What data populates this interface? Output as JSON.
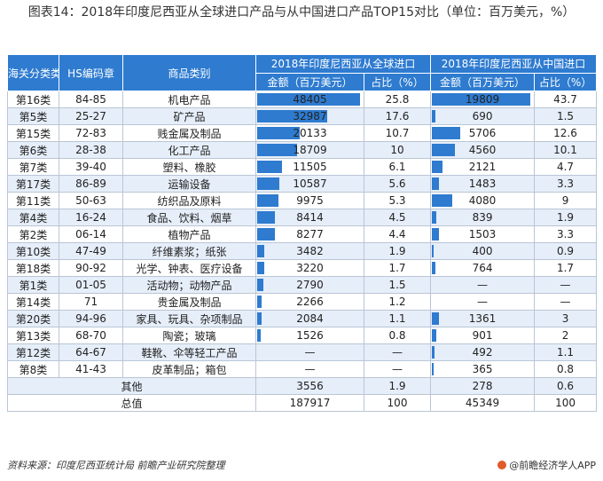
{
  "title": "图表14：2018年印度尼西亚从全球进口产品与从中国进口产品TOP15对比（单位：百万美元，%）",
  "headers": {
    "category": "海关分类类",
    "hs_code": "HS编码章",
    "product": "商品类别",
    "global_group": "2018年印度尼西亚从全球进口",
    "china_group": "2018年印度尼西亚从中国进口",
    "amount": "金额（百万美元）",
    "share": "占比（%）"
  },
  "chart_data": {
    "type": "table",
    "max_global": 48405,
    "max_china": 19809,
    "rows": [
      {
        "cat": "第16类",
        "hs": "84-85",
        "name": "机电产品",
        "g_amt": "48405",
        "g_val": 48405,
        "g_pct": "25.8",
        "c_amt": "19809",
        "c_val": 19809,
        "c_pct": "43.7"
      },
      {
        "cat": "第5类",
        "hs": "25-27",
        "name": "矿产品",
        "g_amt": "32987",
        "g_val": 32987,
        "g_pct": "17.6",
        "c_amt": "690",
        "c_val": 690,
        "c_pct": "1.5"
      },
      {
        "cat": "第15类",
        "hs": "72-83",
        "name": "贱金属及制品",
        "g_amt": "20133",
        "g_val": 20133,
        "g_pct": "10.7",
        "c_amt": "5706",
        "c_val": 5706,
        "c_pct": "12.6"
      },
      {
        "cat": "第6类",
        "hs": "28-38",
        "name": "化工产品",
        "g_amt": "18709",
        "g_val": 18709,
        "g_pct": "10",
        "c_amt": "4560",
        "c_val": 4560,
        "c_pct": "10.1"
      },
      {
        "cat": "第7类",
        "hs": "39-40",
        "name": "塑料、橡胶",
        "g_amt": "11505",
        "g_val": 11505,
        "g_pct": "6.1",
        "c_amt": "2121",
        "c_val": 2121,
        "c_pct": "4.7"
      },
      {
        "cat": "第17类",
        "hs": "86-89",
        "name": "运输设备",
        "g_amt": "10587",
        "g_val": 10587,
        "g_pct": "5.6",
        "c_amt": "1483",
        "c_val": 1483,
        "c_pct": "3.3"
      },
      {
        "cat": "第11类",
        "hs": "50-63",
        "name": "纺织品及原料",
        "g_amt": "9975",
        "g_val": 9975,
        "g_pct": "5.3",
        "c_amt": "4080",
        "c_val": 4080,
        "c_pct": "9"
      },
      {
        "cat": "第4类",
        "hs": "16-24",
        "name": "食品、饮料、烟草",
        "g_amt": "8414",
        "g_val": 8414,
        "g_pct": "4.5",
        "c_amt": "839",
        "c_val": 839,
        "c_pct": "1.9"
      },
      {
        "cat": "第2类",
        "hs": "06-14",
        "name": "植物产品",
        "g_amt": "8277",
        "g_val": 8277,
        "g_pct": "4.4",
        "c_amt": "1503",
        "c_val": 1503,
        "c_pct": "3.3"
      },
      {
        "cat": "第10类",
        "hs": "47-49",
        "name": "纤维素浆；纸张",
        "g_amt": "3482",
        "g_val": 3482,
        "g_pct": "1.9",
        "c_amt": "400",
        "c_val": 400,
        "c_pct": "0.9"
      },
      {
        "cat": "第18类",
        "hs": "90-92",
        "name": "光学、钟表、医疗设备",
        "g_amt": "3220",
        "g_val": 3220,
        "g_pct": "1.7",
        "c_amt": "764",
        "c_val": 764,
        "c_pct": "1.7"
      },
      {
        "cat": "第1类",
        "hs": "01-05",
        "name": "活动物；动物产品",
        "g_amt": "2790",
        "g_val": 2790,
        "g_pct": "1.5",
        "c_amt": "—",
        "c_val": 0,
        "c_pct": "—"
      },
      {
        "cat": "第14类",
        "hs": "71",
        "name": "贵金属及制品",
        "g_amt": "2266",
        "g_val": 2266,
        "g_pct": "1.2",
        "c_amt": "—",
        "c_val": 0,
        "c_pct": "—"
      },
      {
        "cat": "第20类",
        "hs": "94-96",
        "name": "家具、玩具、杂项制品",
        "g_amt": "2084",
        "g_val": 2084,
        "g_pct": "1.1",
        "c_amt": "1361",
        "c_val": 1361,
        "c_pct": "3"
      },
      {
        "cat": "第13类",
        "hs": "68-70",
        "name": "陶瓷；玻璃",
        "g_amt": "1526",
        "g_val": 1526,
        "g_pct": "0.8",
        "c_amt": "901",
        "c_val": 901,
        "c_pct": "2"
      },
      {
        "cat": "第12类",
        "hs": "64-67",
        "name": "鞋靴、伞等轻工产品",
        "g_amt": "—",
        "g_val": 0,
        "g_pct": "—",
        "c_amt": "492",
        "c_val": 492,
        "c_pct": "1.1"
      },
      {
        "cat": "第8类",
        "hs": "41-43",
        "name": "皮革制品；箱包",
        "g_amt": "—",
        "g_val": 0,
        "g_pct": "—",
        "c_amt": "365",
        "c_val": 365,
        "c_pct": "0.8"
      }
    ],
    "other": {
      "label": "其他",
      "g_amt": "3556",
      "g_pct": "1.9",
      "c_amt": "278",
      "c_pct": "0.6"
    },
    "total": {
      "label": "总值",
      "g_amt": "187917",
      "g_pct": "100",
      "c_amt": "45349",
      "c_pct": "100"
    }
  },
  "footer": {
    "source": "资料来源：印度尼西亚统计局 前瞻产业研究院整理",
    "brand": "@前瞻经济学人APP"
  },
  "colors": {
    "accent": "#2e7bd0",
    "stripe": "#e6eef9"
  }
}
